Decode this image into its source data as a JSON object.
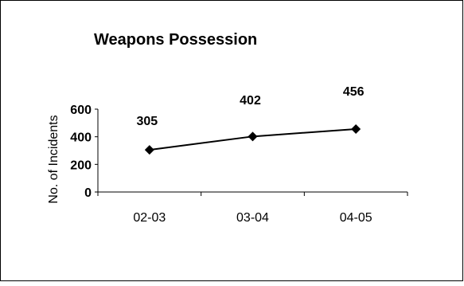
{
  "chart_data": {
    "type": "line",
    "title": "Weapons Possession",
    "xlabel": "",
    "ylabel": "No. of Incidents",
    "categories": [
      "02-03",
      "03-04",
      "04-05"
    ],
    "series": [
      {
        "values": [
          305,
          402,
          456
        ]
      }
    ],
    "data_labels": [
      "305",
      "402",
      "456"
    ],
    "y_ticks": [
      "0",
      "200",
      "400",
      "600"
    ],
    "ylim": [
      0,
      600
    ],
    "grid": false,
    "legend": "none",
    "marker": "diamond",
    "colors": {
      "line": "#000000",
      "marker": "#000000",
      "border": "#000000",
      "background": "#ffffff"
    }
  }
}
